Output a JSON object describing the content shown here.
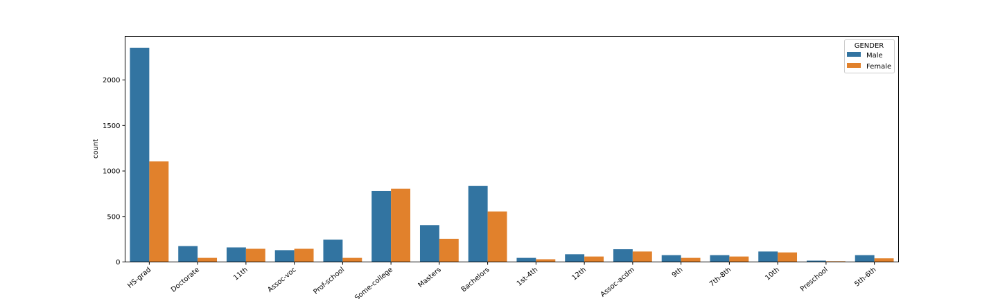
{
  "chart_data": {
    "type": "bar",
    "categories": [
      "HS-grad",
      "Doctorate",
      "11th",
      "Assoc-voc",
      "Prof-school",
      "Some-college",
      "Masters",
      "Bachelors",
      "1st-4th",
      "12th",
      "Assoc-acdm",
      "9th",
      "7th-8th",
      "10th",
      "Preschool",
      "5th-6th"
    ],
    "series": [
      {
        "name": "Male",
        "color": "#3274a1",
        "values": [
          2355,
          175,
          160,
          130,
          245,
          780,
          405,
          835,
          45,
          85,
          140,
          75,
          75,
          115,
          15,
          75
        ]
      },
      {
        "name": "Female",
        "color": "#e1812c",
        "values": [
          1105,
          45,
          145,
          145,
          45,
          805,
          255,
          555,
          30,
          60,
          115,
          45,
          60,
          105,
          8,
          40
        ]
      }
    ],
    "title": "",
    "xlabel": "",
    "ylabel": "count",
    "ylim": [
      0,
      2480
    ],
    "yticks": [
      0,
      500,
      1000,
      1500,
      2000
    ],
    "legend": {
      "title": "GENDER",
      "placement": "top-right"
    },
    "grid": false
  }
}
